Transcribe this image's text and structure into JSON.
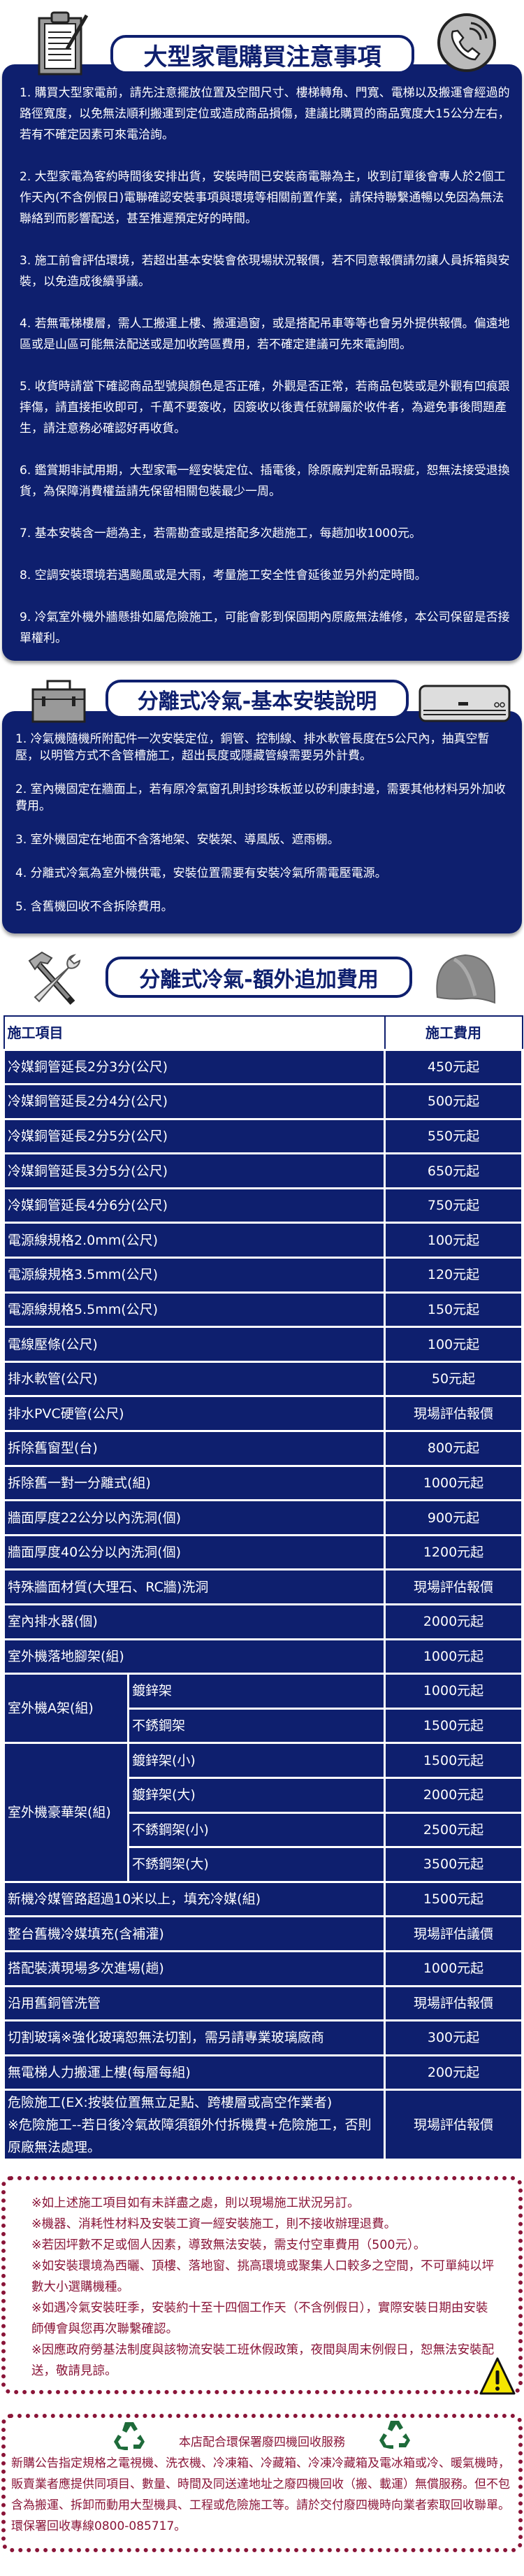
{
  "colors": {
    "navy": "#0e1f6e",
    "maroon": "#8a1538",
    "recycle_green": "#1e6b3a",
    "warning_yellow": "#f5e600"
  },
  "notice": {
    "title": "大型家電購買注意事項",
    "icons": [
      "clipboard-icon",
      "phone-icon"
    ],
    "items": [
      "1. 購買大型家電前，請先注意擺放位置及空間尺寸、樓梯轉角、門寬、電梯以及搬運會經過的路徑寬度，以免無法順利搬運到定位或造成商品損傷，建議比購買的商品寬度大15公分左右，若有不確定因素可來電洽詢。",
      "2. 大型家電為客約時間後安排出貨，安裝時間已安裝商電聯為主，收到訂單後會專人於2個工作天內(不含例假日)電聯確認安裝事項與環境等相關前置作業，請保持聯繫通暢以免因為無法聯絡到而影響配送，甚至推遲預定好的時間。",
      "3. 施工前會評估環境，若超出基本安裝會依現場狀況報價，若不同意報價請勿讓人員拆箱與安裝，以免造成後續爭議。",
      "4. 若無電梯樓層，需人工搬運上樓、搬運過窗，或是搭配吊車等等也會另外提供報價。偏遠地區或是山區可能無法配送或是加收跨區費用，若不確定建議可先來電詢問。",
      "5. 收貨時請當下確認商品型號與顏色是否正確，外觀是否正常，若商品包裝或是外觀有凹痕跟摔傷，請直接拒收即可，千萬不要簽收，因簽收以後責任就歸屬於收件者，為避免事後問題產生，請注意務必確認好再收貨。",
      "6. 鑑賞期非試用期，大型家電一經安裝定位、插電後，除原廠判定新品瑕疵，恕無法接受退換貨，為保障消費權益請先保留相關包裝最少一周。",
      "7. 基本安裝含一趟為主，若需勘查或是搭配多次趟施工，每趟加收1000元。",
      "8. 空調安裝環境若遇颱風或是大雨，考量施工安全性會延後並另外約定時間。",
      "9. 冷氣室外機外牆懸掛如屬危險施工，可能會影到保固期內原廠無法維修，本公司保留是否接單權利。"
    ]
  },
  "install": {
    "title": "分離式冷氣-基本安裝說明",
    "icons": [
      "toolbox-icon",
      "air-conditioner-icon"
    ],
    "items": [
      "1. 冷氣機隨機所附配件一次安裝定位，銅管、控制線、排水軟管長度在5公尺內，抽真空暫壓，以明管方式不含管槽施工，超出長度或隱藏管線需要另外計費。",
      "2. 室內機固定在牆面上，若有原冷氣窗孔則封珍珠板並以矽利康封邊，需要其他材料另外加收費用。",
      "3. 室外機固定在地面不含落地架、安裝架、導風版、遮雨棚。",
      "4. 分離式冷氣為室外機供電，安裝位置需要有安裝冷氣所需電壓電源。",
      "5. 含舊機回收不含拆除費用。"
    ]
  },
  "fees": {
    "title": "分離式冷氣-額外追加費用",
    "icons": [
      "tools-icon",
      "hard-hat-icon"
    ],
    "header": {
      "item": "施工項目",
      "price": "施工費用"
    },
    "rows": [
      {
        "item": "冷媒銅管延長2分3分(公尺)",
        "price": "450元起"
      },
      {
        "item": "冷媒銅管延長2分4分(公尺)",
        "price": "500元起"
      },
      {
        "item": "冷媒銅管延長2分5分(公尺)",
        "price": "550元起"
      },
      {
        "item": "冷媒銅管延長3分5分(公尺)",
        "price": "650元起"
      },
      {
        "item": "冷媒銅管延長4分6分(公尺)",
        "price": "750元起"
      },
      {
        "item": "電源線規格2.0mm(公尺)",
        "price": "100元起"
      },
      {
        "item": "電源線規格3.5mm(公尺)",
        "price": "120元起"
      },
      {
        "item": "電源線規格5.5mm(公尺)",
        "price": "150元起"
      },
      {
        "item": "電線壓條(公尺)",
        "price": "100元起"
      },
      {
        "item": "排水軟管(公尺)",
        "price": "50元起"
      },
      {
        "item": "排水PVC硬管(公尺)",
        "price": "現場評估報價"
      },
      {
        "item": "拆除舊窗型(台)",
        "price": "800元起"
      },
      {
        "item": "拆除舊一對一分離式(組)",
        "price": "1000元起"
      },
      {
        "item": "牆面厚度22公分以內洗洞(個)",
        "price": "900元起"
      },
      {
        "item": "牆面厚度40公分以內洗洞(個)",
        "price": "1200元起"
      },
      {
        "item": "特殊牆面材質(大理石、RC牆)洗洞",
        "price": "現場評估報價"
      },
      {
        "item": "室內排水器(個)",
        "price": "2000元起"
      },
      {
        "item": "室外機落地腳架(組)",
        "price": "1000元起"
      },
      {
        "group": "室外機A架(組)",
        "sub": [
          {
            "item": "鍍鋅架",
            "price": "1000元起"
          },
          {
            "item": "不銹鋼架",
            "price": "1500元起"
          }
        ]
      },
      {
        "group": "室外機豪華架(組)",
        "sub": [
          {
            "item": "鍍鋅架(小)",
            "price": "1500元起"
          },
          {
            "item": "鍍鋅架(大)",
            "price": "2000元起"
          },
          {
            "item": "不銹鋼架(小)",
            "price": "2500元起"
          },
          {
            "item": "不銹鋼架(大)",
            "price": "3500元起"
          }
        ]
      },
      {
        "item": "新機冷媒管路超過10米以上，填充冷媒(組)",
        "price": "1500元起"
      },
      {
        "item": "整台舊機冷媒填充(含補灌)",
        "price": "現場評估議價"
      },
      {
        "item": "搭配裝潢現場多次進場(趟)",
        "price": "1000元起"
      },
      {
        "item": "沿用舊銅管洗管",
        "price": "現場評估報價"
      },
      {
        "item": "切割玻璃※強化玻璃恕無法切割，需另請專業玻璃廠商",
        "price": "300元起"
      },
      {
        "item": "無電梯人力搬運上樓(每層每組)",
        "price": "200元起"
      },
      {
        "item": "危險施工(EX:按裝位置無立足點、跨樓層或高空作業者)",
        "item2": "※危險施工--若日後冷氣故障須額外付拆機費+危險施工，否則原廠無法處理。",
        "price": "現場評估報價"
      }
    ]
  },
  "notes": {
    "icon": "warning-icon",
    "items": [
      "※如上述施工項目如有未詳盡之處，則以現場施工狀況另訂。",
      "※機器、消耗性材料及安裝工資一經安裝施工，則不接收辦理退費。",
      "※若因坪數不足或個人因素，導致無法安裝，需支付空車費用（500元）。",
      "※如安裝環境為西曬、頂樓、落地窗、挑高環境或聚集人口較多之空間，不可單純以坪數大小選購機種。",
      "※如遇冷氣安裝旺季，安裝約十至十四個工作天（不含例假日），實際安裝日期由安裝師傅會與您再次聯繫確認。",
      "※因應政府勞基法制度與該物流安裝工班休假政策，夜間與周末例假日，恕無法安裝配送，敬請見諒。"
    ]
  },
  "recycle": {
    "title": "本店配合環保署廢四機回收服務",
    "icon": "recycle-icon",
    "body": "新購公告指定規格之電視機、洗衣機、冷凍箱、冷藏箱、冷凍冷藏箱及電冰箱或冷、暖氣機時，販賣業者應提供同項目、數量、時間及同送達地址之廢四機回收（搬、載運）無償服務。但不包含為搬運、拆卸而動用大型機具、工程或危險施工等。請於交付廢四機時向業者索取回收聯單。環保署回收專線0800-085717。"
  }
}
